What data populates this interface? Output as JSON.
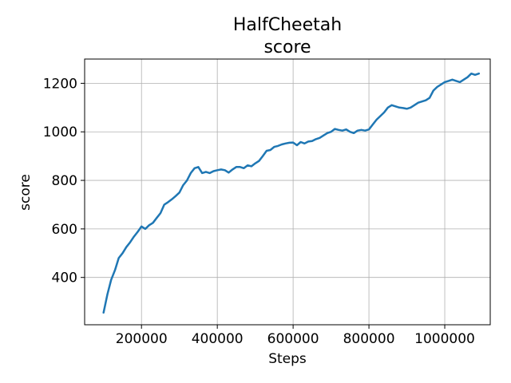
{
  "chart_data": {
    "type": "line",
    "title": "HalfCheetah",
    "subtitle": "score",
    "xlabel": "Steps",
    "ylabel": "score",
    "xlim": [
      50000,
      1120000
    ],
    "ylim": [
      205,
      1300
    ],
    "xticks": [
      200000,
      400000,
      600000,
      800000,
      1000000
    ],
    "xtick_labels": [
      "200000",
      "400000",
      "600000",
      "800000",
      "1000000"
    ],
    "yticks": [
      400,
      600,
      800,
      1000,
      1200
    ],
    "ytick_labels": [
      "400",
      "600",
      "800",
      "1000",
      "1200"
    ],
    "grid": true,
    "line_color": "#1f77b4",
    "series": [
      {
        "x": [
          100000,
          110000,
          120000,
          130000,
          140000,
          150000,
          160000,
          170000,
          180000,
          190000,
          200000,
          210000,
          220000,
          230000,
          240000,
          250000,
          260000,
          270000,
          280000,
          290000,
          300000,
          310000,
          320000,
          330000,
          340000,
          350000,
          360000,
          370000,
          380000,
          390000,
          400000,
          410000,
          420000,
          430000,
          440000,
          450000,
          460000,
          470000,
          480000,
          490000,
          500000,
          510000,
          520000,
          530000,
          540000,
          550000,
          560000,
          570000,
          580000,
          590000,
          600000,
          610000,
          620000,
          630000,
          640000,
          650000,
          660000,
          670000,
          680000,
          690000,
          700000,
          710000,
          720000,
          730000,
          740000,
          750000,
          760000,
          770000,
          780000,
          790000,
          800000,
          810000,
          820000,
          830000,
          840000,
          850000,
          860000,
          870000,
          880000,
          890000,
          900000,
          910000,
          920000,
          930000,
          940000,
          950000,
          960000,
          970000,
          980000,
          990000,
          1000000,
          1010000,
          1020000,
          1030000,
          1040000,
          1050000,
          1060000,
          1070000,
          1080000,
          1090000
        ],
        "y": [
          255,
          330,
          390,
          430,
          480,
          500,
          525,
          545,
          568,
          588,
          610,
          600,
          615,
          625,
          645,
          665,
          700,
          710,
          722,
          735,
          750,
          780,
          800,
          830,
          850,
          855,
          830,
          835,
          830,
          838,
          842,
          845,
          842,
          832,
          845,
          855,
          855,
          850,
          862,
          858,
          870,
          880,
          900,
          922,
          925,
          938,
          942,
          948,
          952,
          955,
          956,
          945,
          958,
          952,
          960,
          962,
          970,
          975,
          985,
          995,
          1000,
          1012,
          1008,
          1005,
          1010,
          1000,
          995,
          1005,
          1008,
          1005,
          1010,
          1030,
          1050,
          1065,
          1080,
          1100,
          1110,
          1105,
          1100,
          1098,
          1095,
          1100,
          1110,
          1120,
          1125,
          1130,
          1140,
          1170,
          1185,
          1195,
          1205,
          1210,
          1215,
          1210,
          1205,
          1215,
          1225,
          1240,
          1235,
          1240
        ]
      }
    ]
  }
}
